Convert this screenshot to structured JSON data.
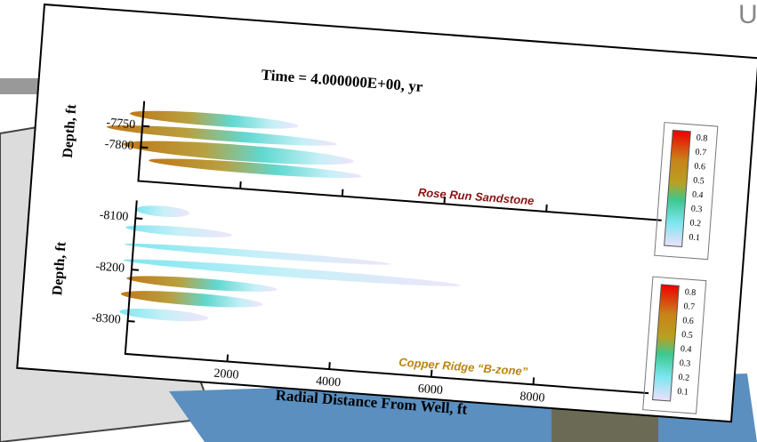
{
  "header": {
    "corner_text": "U"
  },
  "figure": {
    "title": "Time = 4.000000E+00, yr",
    "top_panel": {
      "y_label": "Depth, ft",
      "y_ticks": [
        "-7750",
        "-7800"
      ],
      "formation": "Rose Run Sandstone",
      "colorbar": [
        "0.8",
        "0.7",
        "0.6",
        "0.5",
        "0.4",
        "0.3",
        "0.2",
        "0.1"
      ]
    },
    "bottom_panel": {
      "y_label": "Depth, ft",
      "y_ticks": [
        "-8100",
        "-8200",
        "-8300"
      ],
      "formation": "Copper Ridge “B-zone”",
      "colorbar": [
        "0.8",
        "0.7",
        "0.6",
        "0.5",
        "0.4",
        "0.3",
        "0.2",
        "0.1"
      ]
    },
    "x_label": "Radial Distance From Well, ft",
    "x_ticks": [
      "2000",
      "4000",
      "6000",
      "8000"
    ]
  }
}
